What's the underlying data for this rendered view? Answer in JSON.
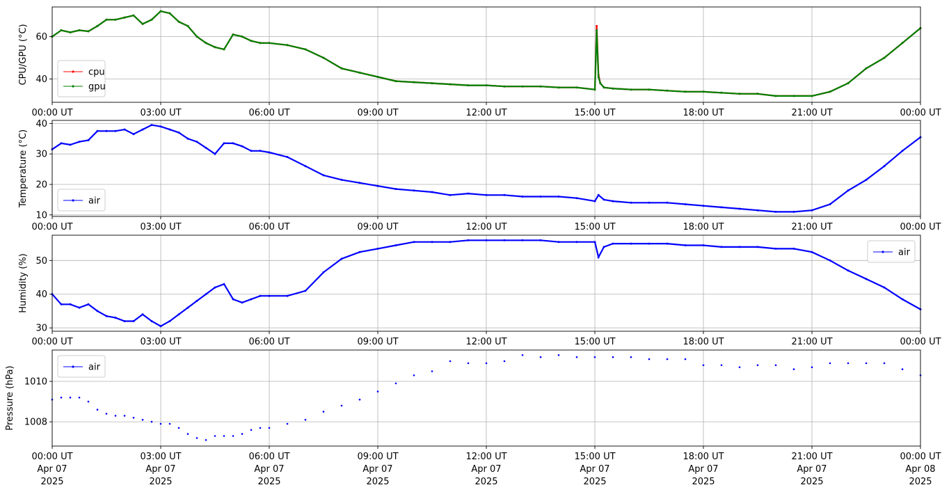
{
  "chart_data": [
    {
      "type": "line",
      "ylabel": "CPU/GPU (°C)",
      "yticks": [
        40,
        60
      ],
      "ylim": [
        29,
        74
      ],
      "grid": true,
      "legend": "lower-left",
      "xlim": [
        0,
        24
      ],
      "x_tick_labels": [
        "00:00 UT",
        "03:00 UT",
        "06:00 UT",
        "09:00 UT",
        "12:00 UT",
        "15:00 UT",
        "18:00 UT",
        "21:00 UT",
        "00:00 UT"
      ],
      "series": [
        {
          "name": "cpu",
          "color": "#ff0000",
          "x": [
            0,
            0.25,
            0.5,
            0.75,
            1,
            1.25,
            1.5,
            1.75,
            2,
            2.25,
            2.5,
            2.75,
            3,
            3.25,
            3.5,
            3.75,
            4,
            4.25,
            4.5,
            4.75,
            5,
            5.25,
            5.5,
            5.75,
            6,
            6.5,
            7,
            7.5,
            8,
            8.5,
            9,
            9.5,
            10,
            10.5,
            11,
            11.5,
            12,
            12.5,
            13,
            13.5,
            14,
            14.5,
            15,
            15.05,
            15.1,
            15.15,
            15.25,
            15.5,
            16,
            16.5,
            17,
            17.5,
            18,
            18.5,
            19,
            19.5,
            20,
            20.5,
            21,
            21.5,
            22,
            22.5,
            23,
            23.5,
            24
          ],
          "y": [
            60,
            63,
            62,
            63,
            62.5,
            65,
            68,
            68,
            69,
            70,
            66,
            68,
            72,
            71,
            67,
            65,
            60,
            57,
            55,
            54,
            61,
            60,
            58,
            57,
            57,
            56,
            54,
            50,
            45,
            43,
            41,
            39,
            38.5,
            38,
            37.5,
            37,
            37,
            36.5,
            36.5,
            36.5,
            36,
            36,
            35,
            65,
            42,
            38,
            36,
            35.5,
            35,
            35,
            34.5,
            34,
            34,
            33.5,
            33,
            33,
            32,
            32,
            32,
            34,
            38,
            45,
            50,
            57,
            64
          ]
        },
        {
          "name": "gpu",
          "color": "#008000",
          "x": [
            0,
            0.25,
            0.5,
            0.75,
            1,
            1.25,
            1.5,
            1.75,
            2,
            2.25,
            2.5,
            2.75,
            3,
            3.25,
            3.5,
            3.75,
            4,
            4.25,
            4.5,
            4.75,
            5,
            5.25,
            5.5,
            5.75,
            6,
            6.5,
            7,
            7.5,
            8,
            8.5,
            9,
            9.5,
            10,
            10.5,
            11,
            11.5,
            12,
            12.5,
            13,
            13.5,
            14,
            14.5,
            15,
            15.05,
            15.1,
            15.15,
            15.25,
            15.5,
            16,
            16.5,
            17,
            17.5,
            18,
            18.5,
            19,
            19.5,
            20,
            20.5,
            21,
            21.5,
            22,
            22.5,
            23,
            23.5,
            24
          ],
          "y": [
            60,
            63,
            62,
            63,
            62.5,
            65,
            68,
            68,
            69,
            70,
            66,
            68,
            72,
            71,
            67,
            65,
            60,
            57,
            55,
            54,
            61,
            60,
            58,
            57,
            57,
            56,
            54,
            50,
            45,
            43,
            41,
            39,
            38.5,
            38,
            37.5,
            37,
            37,
            36.5,
            36.5,
            36.5,
            36,
            36,
            35,
            63,
            41,
            38,
            36,
            35.5,
            35,
            35,
            34.5,
            34,
            34,
            33.5,
            33,
            33,
            32,
            32,
            32,
            34,
            38,
            45,
            50,
            57,
            64
          ]
        }
      ]
    },
    {
      "type": "line",
      "ylabel": "Temperature (°C)",
      "yticks": [
        10,
        20,
        30,
        40
      ],
      "ylim": [
        9.5,
        41
      ],
      "grid": true,
      "legend": "lower-left",
      "xlim": [
        0,
        24
      ],
      "x_tick_labels": [
        "00:00 UT",
        "03:00 UT",
        "06:00 UT",
        "09:00 UT",
        "12:00 UT",
        "15:00 UT",
        "18:00 UT",
        "21:00 UT",
        "00:00 UT"
      ],
      "series": [
        {
          "name": "air",
          "color": "#0000ff",
          "x": [
            0,
            0.25,
            0.5,
            0.75,
            1,
            1.25,
            1.5,
            1.75,
            2,
            2.25,
            2.5,
            2.75,
            3,
            3.25,
            3.5,
            3.75,
            4,
            4.25,
            4.5,
            4.75,
            5,
            5.25,
            5.5,
            5.75,
            6,
            6.5,
            7,
            7.5,
            8,
            8.5,
            9,
            9.5,
            10,
            10.5,
            11,
            11.5,
            12,
            12.5,
            13,
            13.5,
            14,
            14.5,
            15,
            15.1,
            15.25,
            15.5,
            16,
            16.5,
            17,
            17.5,
            18,
            18.5,
            19,
            19.5,
            20,
            20.5,
            21,
            21.5,
            22,
            22.5,
            23,
            23.5,
            24
          ],
          "y": [
            31.5,
            33.5,
            33,
            34,
            34.5,
            37.5,
            37.5,
            37.5,
            38,
            36.5,
            38,
            39.5,
            39,
            38,
            37,
            35,
            34,
            32,
            30,
            33.5,
            33.5,
            32.5,
            31,
            31,
            30.5,
            29,
            26,
            23,
            21.5,
            20.5,
            19.5,
            18.5,
            18,
            17.5,
            16.5,
            17,
            16.5,
            16.5,
            16,
            16,
            16,
            15.5,
            14.5,
            16.5,
            15,
            14.5,
            14,
            14,
            14,
            13.5,
            13,
            12.5,
            12,
            11.5,
            11,
            11,
            11.5,
            13.5,
            18,
            21.5,
            26,
            31,
            35.5
          ]
        }
      ]
    },
    {
      "type": "line",
      "ylabel": "Humidity (%)",
      "yticks": [
        30,
        40,
        50
      ],
      "ylim": [
        29,
        57.5
      ],
      "grid": true,
      "legend": "upper-right",
      "xlim": [
        0,
        24
      ],
      "x_tick_labels": [
        "00:00 UT",
        "03:00 UT",
        "06:00 UT",
        "09:00 UT",
        "12:00 UT",
        "15:00 UT",
        "18:00 UT",
        "21:00 UT",
        "00:00 UT"
      ],
      "series": [
        {
          "name": "air",
          "color": "#0000ff",
          "x": [
            0,
            0.25,
            0.5,
            0.75,
            1,
            1.25,
            1.5,
            1.75,
            2,
            2.25,
            2.5,
            2.75,
            3,
            3.25,
            3.5,
            3.75,
            4,
            4.25,
            4.5,
            4.75,
            5,
            5.25,
            5.5,
            5.75,
            6,
            6.5,
            7,
            7.5,
            8,
            8.5,
            9,
            9.5,
            10,
            10.5,
            11,
            11.5,
            12,
            12.5,
            13,
            13.5,
            14,
            14.5,
            15,
            15.1,
            15.25,
            15.5,
            16,
            16.5,
            17,
            17.5,
            18,
            18.5,
            19,
            19.5,
            20,
            20.5,
            21,
            21.5,
            22,
            22.5,
            23,
            23.5,
            24
          ],
          "y": [
            40,
            37,
            37,
            36,
            37,
            35,
            33.5,
            33,
            32,
            32,
            34,
            32,
            30.5,
            32,
            34,
            36,
            38,
            40,
            42,
            43,
            38.5,
            37.5,
            38.5,
            39.5,
            39.5,
            39.5,
            41,
            46.5,
            50.5,
            52.5,
            53.5,
            54.5,
            55.5,
            55.5,
            55.5,
            56,
            56,
            56,
            56,
            56,
            55.5,
            55.5,
            55.5,
            51,
            54,
            55,
            55,
            55,
            55,
            54.5,
            54.5,
            54,
            54,
            54,
            53.5,
            53.5,
            52.5,
            50,
            47,
            44.5,
            42,
            38.5,
            35.5
          ]
        }
      ]
    },
    {
      "type": "scatter",
      "ylabel": "Pressure (hPa)",
      "yticks": [
        1008,
        1010
      ],
      "ylim": [
        1006.8,
        1011.55
      ],
      "grid": true,
      "legend": "upper-left",
      "xlim": [
        0,
        24
      ],
      "x_tick_labels": [
        "00:00 UT",
        "03:00 UT",
        "06:00 UT",
        "09:00 UT",
        "12:00 UT",
        "15:00 UT",
        "18:00 UT",
        "21:00 UT",
        "00:00 UT"
      ],
      "x_tick_dates": [
        "Apr 07",
        "Apr 07",
        "Apr 07",
        "Apr 07",
        "Apr 07",
        "Apr 07",
        "Apr 07",
        "Apr 07",
        "Apr 08"
      ],
      "x_tick_years": [
        "2025",
        "2025",
        "2025",
        "2025",
        "2025",
        "2025",
        "2025",
        "2025",
        "2025"
      ],
      "series": [
        {
          "name": "air",
          "color": "#0000ff",
          "x": [
            0,
            0.25,
            0.5,
            0.75,
            1,
            1.25,
            1.5,
            1.75,
            2,
            2.25,
            2.5,
            2.75,
            3,
            3.25,
            3.5,
            3.75,
            4,
            4.25,
            4.5,
            4.75,
            5,
            5.25,
            5.5,
            5.75,
            6,
            6.5,
            7,
            7.5,
            8,
            8.5,
            9,
            9.5,
            10,
            10.5,
            11,
            11.5,
            12,
            12.5,
            13,
            13.5,
            14,
            14.5,
            15,
            15.5,
            16,
            16.5,
            17,
            17.5,
            18,
            18.5,
            19,
            19.5,
            20,
            20.5,
            21,
            21.5,
            22,
            22.5,
            23,
            23.5,
            24
          ],
          "y": [
            1009.1,
            1009.2,
            1009.2,
            1009.2,
            1009.0,
            1008.6,
            1008.4,
            1008.3,
            1008.3,
            1008.2,
            1008.1,
            1008.0,
            1007.9,
            1007.9,
            1007.7,
            1007.4,
            1007.2,
            1007.1,
            1007.3,
            1007.3,
            1007.3,
            1007.4,
            1007.6,
            1007.7,
            1007.7,
            1007.9,
            1008.1,
            1008.5,
            1008.8,
            1009.1,
            1009.5,
            1009.9,
            1010.3,
            1010.5,
            1011.0,
            1010.9,
            1010.9,
            1011.0,
            1011.3,
            1011.2,
            1011.3,
            1011.2,
            1011.2,
            1011.2,
            1011.2,
            1011.1,
            1011.1,
            1011.1,
            1010.8,
            1010.8,
            1010.7,
            1010.8,
            1010.8,
            1010.6,
            1010.7,
            1010.9,
            1010.9,
            1010.9,
            1010.9,
            1010.6,
            1010.3
          ]
        }
      ]
    }
  ]
}
